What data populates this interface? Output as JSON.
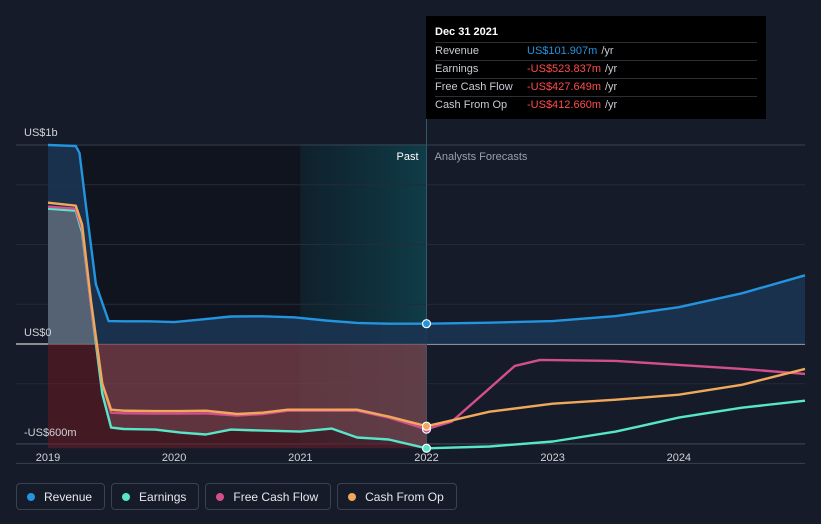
{
  "chart_data": {
    "type": "area",
    "ylim": [
      -600,
      1000
    ],
    "xlim": [
      2019.0,
      2025.0
    ],
    "y_tick_labels": [
      {
        "value": 1000,
        "label": "US$1b"
      },
      {
        "value": 0,
        "label": "US$0"
      },
      {
        "value": -600,
        "label": "-US$600m"
      }
    ],
    "x_ticks": [
      {
        "value": 2019.0,
        "label": "2019"
      },
      {
        "value": 2020.0,
        "label": "2020"
      },
      {
        "value": 2021.0,
        "label": "2021"
      },
      {
        "value": 2022.0,
        "label": "2022"
      },
      {
        "value": 2023.0,
        "label": "2023"
      },
      {
        "value": 2024.0,
        "label": "2024"
      }
    ],
    "past_label": "Past",
    "forecast_label": "Analysts Forecasts",
    "past_end": 2022.0,
    "highlight_start": 2021.0,
    "series": [
      {
        "name": "Revenue",
        "color": "#2394df",
        "points": [
          [
            2019.0,
            1000
          ],
          [
            2019.22,
            995
          ],
          [
            2019.25,
            960
          ],
          [
            2019.3,
            700
          ],
          [
            2019.38,
            300
          ],
          [
            2019.48,
            115
          ],
          [
            2019.6,
            114
          ],
          [
            2019.8,
            114
          ],
          [
            2020.0,
            110
          ],
          [
            2020.2,
            122
          ],
          [
            2020.45,
            138
          ],
          [
            2020.7,
            139
          ],
          [
            2020.95,
            134
          ],
          [
            2021.2,
            118
          ],
          [
            2021.45,
            106
          ],
          [
            2021.7,
            102
          ],
          [
            2022.0,
            102
          ],
          [
            2022.5,
            107
          ],
          [
            2023.0,
            115
          ],
          [
            2023.5,
            140
          ],
          [
            2024.0,
            185
          ],
          [
            2024.5,
            255
          ],
          [
            2025.0,
            345
          ]
        ]
      },
      {
        "name": "Earnings",
        "color": "#58e6c8",
        "points": [
          [
            2019.0,
            680
          ],
          [
            2019.22,
            670
          ],
          [
            2019.27,
            560
          ],
          [
            2019.34,
            200
          ],
          [
            2019.43,
            -250
          ],
          [
            2019.5,
            -420
          ],
          [
            2019.6,
            -427
          ],
          [
            2019.85,
            -430
          ],
          [
            2020.05,
            -445
          ],
          [
            2020.25,
            -455
          ],
          [
            2020.45,
            -430
          ],
          [
            2020.7,
            -435
          ],
          [
            2021.0,
            -440
          ],
          [
            2021.25,
            -425
          ],
          [
            2021.45,
            -470
          ],
          [
            2021.7,
            -480
          ],
          [
            2022.0,
            -524
          ],
          [
            2022.5,
            -515
          ],
          [
            2023.0,
            -490
          ],
          [
            2023.5,
            -440
          ],
          [
            2024.0,
            -370
          ],
          [
            2024.5,
            -320
          ],
          [
            2025.0,
            -285
          ]
        ]
      },
      {
        "name": "Free Cash Flow",
        "color": "#d34f8c",
        "points": [
          [
            2019.0,
            690
          ],
          [
            2019.22,
            680
          ],
          [
            2019.27,
            580
          ],
          [
            2019.34,
            200
          ],
          [
            2019.43,
            -200
          ],
          [
            2019.5,
            -345
          ],
          [
            2019.6,
            -348
          ],
          [
            2019.85,
            -350
          ],
          [
            2020.05,
            -350
          ],
          [
            2020.25,
            -348
          ],
          [
            2020.5,
            -360
          ],
          [
            2020.7,
            -352
          ],
          [
            2020.9,
            -335
          ],
          [
            2021.15,
            -335
          ],
          [
            2021.45,
            -335
          ],
          [
            2021.7,
            -370
          ],
          [
            2022.0,
            -428
          ],
          [
            2022.2,
            -390
          ],
          [
            2022.45,
            -250
          ],
          [
            2022.7,
            -110
          ],
          [
            2022.9,
            -80
          ],
          [
            2023.5,
            -85
          ],
          [
            2024.0,
            -105
          ],
          [
            2024.5,
            -125
          ],
          [
            2025.0,
            -150
          ]
        ]
      },
      {
        "name": "Cash From Op",
        "color": "#f0a95a",
        "points": [
          [
            2019.0,
            710
          ],
          [
            2019.22,
            695
          ],
          [
            2019.27,
            600
          ],
          [
            2019.34,
            220
          ],
          [
            2019.43,
            -200
          ],
          [
            2019.5,
            -330
          ],
          [
            2019.6,
            -335
          ],
          [
            2019.85,
            -337
          ],
          [
            2020.05,
            -337
          ],
          [
            2020.25,
            -335
          ],
          [
            2020.5,
            -352
          ],
          [
            2020.7,
            -345
          ],
          [
            2020.9,
            -330
          ],
          [
            2021.15,
            -330
          ],
          [
            2021.45,
            -330
          ],
          [
            2021.7,
            -365
          ],
          [
            2022.0,
            -413
          ],
          [
            2022.5,
            -340
          ],
          [
            2023.0,
            -300
          ],
          [
            2023.5,
            -280
          ],
          [
            2024.0,
            -255
          ],
          [
            2024.5,
            -205
          ],
          [
            2025.0,
            -125
          ]
        ]
      }
    ],
    "markers": [
      {
        "series": "Revenue",
        "x": 2022.0,
        "y": 102
      },
      {
        "series": "Earnings",
        "x": 2022.0,
        "y": -524
      },
      {
        "series": "Free Cash Flow",
        "x": 2022.0,
        "y": -428
      },
      {
        "series": "Cash From Op",
        "x": 2022.0,
        "y": -413
      }
    ]
  },
  "tooltip": {
    "date": "Dec 31 2021",
    "rows": [
      {
        "label": "Revenue",
        "value": "US$101.907m",
        "unit": "/yr",
        "color": "#2394df"
      },
      {
        "label": "Earnings",
        "value": "-US$523.837m",
        "unit": "/yr",
        "color": "#ff4c4c"
      },
      {
        "label": "Free Cash Flow",
        "value": "-US$427.649m",
        "unit": "/yr",
        "color": "#ff4c4c"
      },
      {
        "label": "Cash From Op",
        "value": "-US$412.660m",
        "unit": "/yr",
        "color": "#ff4c4c"
      }
    ]
  },
  "legend": [
    {
      "label": "Revenue",
      "color": "#2394df"
    },
    {
      "label": "Earnings",
      "color": "#58e6c8"
    },
    {
      "label": "Free Cash Flow",
      "color": "#d34f8c"
    },
    {
      "label": "Cash From Op",
      "color": "#f0a95a"
    }
  ]
}
